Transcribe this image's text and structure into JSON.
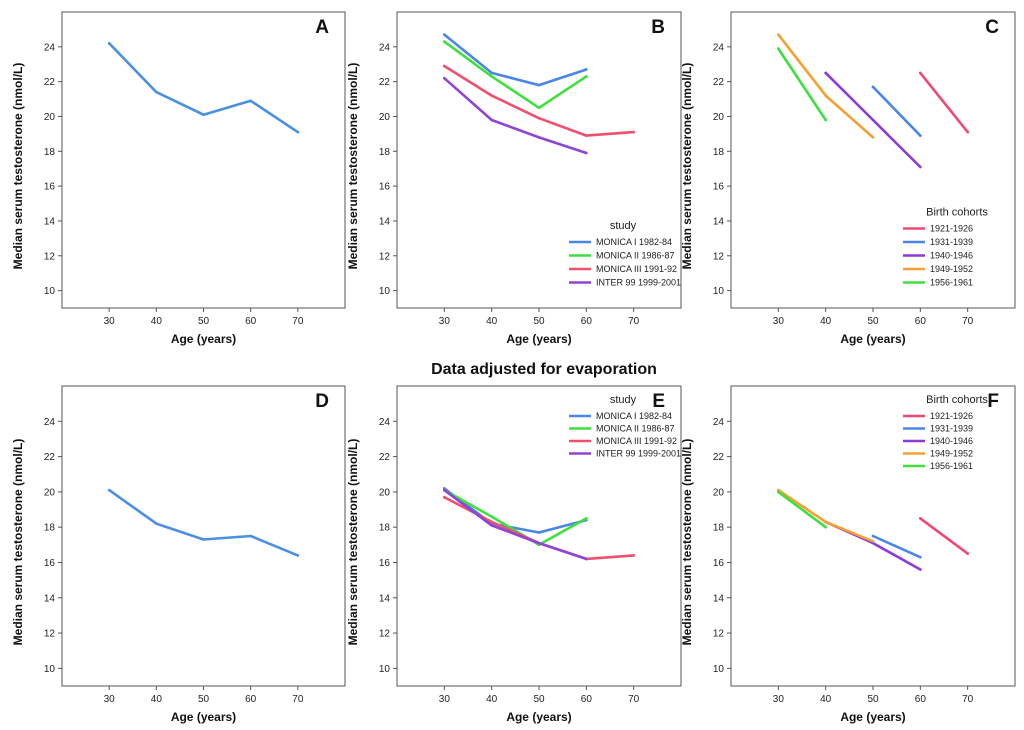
{
  "figure_title": "Data adjusted for evaporation",
  "colors": {
    "single": "#4a90e2",
    "monica1": "#4a86e8",
    "monica2": "#3ee03e",
    "monica3": "#f0506e",
    "inter99": "#8e44d4",
    "c1921": "#f04870",
    "c1931": "#4a86e8",
    "c1940": "#8e3ad6",
    "c1949": "#f5a030",
    "c1956": "#3ee03e"
  },
  "chart_data": [
    {
      "panel": "A",
      "type": "line",
      "xlabel": "Age (years)",
      "ylabel": "Median serum testosterone (nmol/L)",
      "xlim": [
        20,
        80
      ],
      "ylim": [
        9,
        26
      ],
      "xticks": [
        "30",
        "40",
        "50",
        "60",
        "70"
      ],
      "yticks": [
        "10",
        "12",
        "14",
        "16",
        "18",
        "20",
        "22",
        "24"
      ],
      "legend": null,
      "series": [
        {
          "name": "",
          "color": "single",
          "x": [
            30,
            40,
            50,
            60,
            70
          ],
          "y": [
            24.2,
            21.4,
            20.1,
            20.9,
            19.1
          ]
        }
      ]
    },
    {
      "panel": "B",
      "type": "line",
      "xlabel": "Age (years)",
      "ylabel": "Median serum testosterone (nmol/L)",
      "xlim": [
        20,
        80
      ],
      "ylim": [
        9,
        26
      ],
      "xticks": [
        "30",
        "40",
        "50",
        "60",
        "70"
      ],
      "yticks": [
        "10",
        "12",
        "14",
        "16",
        "18",
        "20",
        "22",
        "24"
      ],
      "legend": {
        "title": "study",
        "placement": "bottom-right"
      },
      "series": [
        {
          "name": "MONICA I 1982-84",
          "color": "monica1",
          "x": [
            30,
            40,
            50,
            60
          ],
          "y": [
            24.7,
            22.5,
            21.8,
            22.7
          ]
        },
        {
          "name": "MONICA II 1986-87",
          "color": "monica2",
          "x": [
            30,
            40,
            50,
            60
          ],
          "y": [
            24.3,
            22.3,
            20.5,
            22.3
          ]
        },
        {
          "name": "MONICA III 1991-92",
          "color": "monica3",
          "x": [
            30,
            40,
            50,
            60,
            70
          ],
          "y": [
            22.9,
            21.2,
            19.9,
            18.9,
            19.1
          ]
        },
        {
          "name": "INTER 99 1999-2001",
          "color": "inter99",
          "x": [
            30,
            40,
            50,
            60
          ],
          "y": [
            22.2,
            19.8,
            18.8,
            17.9
          ]
        }
      ]
    },
    {
      "panel": "C",
      "type": "line",
      "xlabel": "Age (years)",
      "ylabel": "Median serum testosterone (nmol/L)",
      "xlim": [
        20,
        80
      ],
      "ylim": [
        9,
        26
      ],
      "xticks": [
        "30",
        "40",
        "50",
        "60",
        "70"
      ],
      "yticks": [
        "10",
        "12",
        "14",
        "16",
        "18",
        "20",
        "22",
        "24"
      ],
      "legend": {
        "title": "Birth cohorts",
        "placement": "bottom-right"
      },
      "series": [
        {
          "name": "1921-1926",
          "color": "c1921",
          "x": [
            60,
            70
          ],
          "y": [
            22.5,
            19.1
          ]
        },
        {
          "name": "1931-1939",
          "color": "c1931",
          "x": [
            50,
            60
          ],
          "y": [
            21.7,
            18.9
          ]
        },
        {
          "name": "1940-1946",
          "color": "c1940",
          "x": [
            40,
            50,
            60
          ],
          "y": [
            22.5,
            19.8,
            17.1
          ]
        },
        {
          "name": "1949-1952",
          "color": "c1949",
          "x": [
            30,
            40,
            50
          ],
          "y": [
            24.7,
            21.2,
            18.8
          ]
        },
        {
          "name": "1956-1961",
          "color": "c1956",
          "x": [
            30,
            40
          ],
          "y": [
            23.9,
            19.8
          ]
        }
      ]
    },
    {
      "panel": "D",
      "type": "line",
      "xlabel": "Age (years)",
      "ylabel": "Median serum testosterone (nmol/L)",
      "xlim": [
        20,
        80
      ],
      "ylim": [
        9,
        26
      ],
      "xticks": [
        "30",
        "40",
        "50",
        "60",
        "70"
      ],
      "yticks": [
        "10",
        "12",
        "14",
        "16",
        "18",
        "20",
        "22",
        "24"
      ],
      "legend": null,
      "series": [
        {
          "name": "",
          "color": "single",
          "x": [
            30,
            40,
            50,
            60,
            70
          ],
          "y": [
            20.1,
            18.2,
            17.3,
            17.5,
            16.4
          ]
        }
      ]
    },
    {
      "panel": "E",
      "type": "line",
      "xlabel": "Age (years)",
      "ylabel": "Median serum testosterone (nmol/L)",
      "xlim": [
        20,
        80
      ],
      "ylim": [
        9,
        26
      ],
      "xticks": [
        "30",
        "40",
        "50",
        "60",
        "70"
      ],
      "yticks": [
        "10",
        "12",
        "14",
        "16",
        "18",
        "20",
        "22",
        "24"
      ],
      "legend": {
        "title": "study",
        "placement": "top-right"
      },
      "series": [
        {
          "name": "MONICA I 1982-84",
          "color": "monica1",
          "x": [
            30,
            40,
            50,
            60
          ],
          "y": [
            20.2,
            18.2,
            17.7,
            18.4
          ]
        },
        {
          "name": "MONICA II 1986-87",
          "color": "monica2",
          "x": [
            30,
            40,
            50,
            60
          ],
          "y": [
            20.1,
            18.6,
            17.0,
            18.5
          ]
        },
        {
          "name": "MONICA III 1991-92",
          "color": "monica3",
          "x": [
            30,
            40,
            50,
            60,
            70
          ],
          "y": [
            19.7,
            18.3,
            17.1,
            16.2,
            16.4
          ]
        },
        {
          "name": "INTER 99 1999-2001",
          "color": "inter99",
          "x": [
            30,
            40,
            50,
            60
          ],
          "y": [
            20.1,
            18.1,
            17.1,
            16.2
          ]
        }
      ]
    },
    {
      "panel": "F",
      "type": "line",
      "xlabel": "Age (years)",
      "ylabel": "Median serum testosterone (nmol/L)",
      "xlim": [
        20,
        80
      ],
      "ylim": [
        9,
        26
      ],
      "xticks": [
        "30",
        "40",
        "50",
        "60",
        "70"
      ],
      "yticks": [
        "10",
        "12",
        "14",
        "16",
        "18",
        "20",
        "22",
        "24"
      ],
      "legend": {
        "title": "Birth cohorts",
        "placement": "top-right"
      },
      "series": [
        {
          "name": "1921-1926",
          "color": "c1921",
          "x": [
            60,
            70
          ],
          "y": [
            18.5,
            16.5
          ]
        },
        {
          "name": "1931-1939",
          "color": "c1931",
          "x": [
            50,
            60
          ],
          "y": [
            17.5,
            16.3
          ]
        },
        {
          "name": "1940-1946",
          "color": "c1940",
          "x": [
            40,
            50,
            60
          ],
          "y": [
            18.3,
            17.1,
            15.6
          ]
        },
        {
          "name": "1949-1952",
          "color": "c1949",
          "x": [
            30,
            40,
            50
          ],
          "y": [
            20.1,
            18.3,
            17.2
          ]
        },
        {
          "name": "1956-1961",
          "color": "c1956",
          "x": [
            30,
            40
          ],
          "y": [
            20.0,
            18.0
          ]
        }
      ]
    }
  ]
}
